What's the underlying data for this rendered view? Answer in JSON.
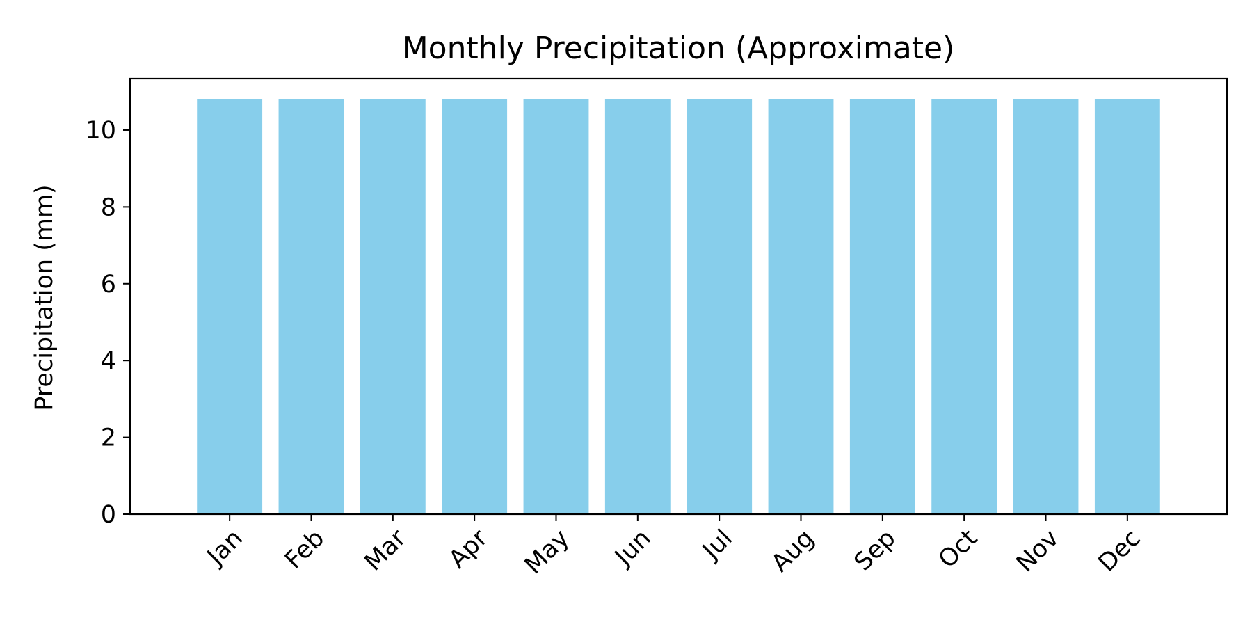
{
  "chart_data": {
    "type": "bar",
    "title": "Monthly Precipitation (Approximate)",
    "xlabel": "",
    "ylabel": "Precipitation (mm)",
    "categories": [
      "Jan",
      "Feb",
      "Mar",
      "Apr",
      "May",
      "Jun",
      "Jul",
      "Aug",
      "Sep",
      "Oct",
      "Nov",
      "Dec"
    ],
    "values": [
      10.8,
      10.8,
      10.8,
      10.8,
      10.8,
      10.8,
      10.8,
      10.8,
      10.8,
      10.8,
      10.8,
      10.8
    ],
    "yticks": [
      0,
      2,
      4,
      6,
      8,
      10
    ],
    "ylim": [
      0,
      11.34
    ],
    "bar_color": "#87ceeb",
    "grid": false,
    "legend": "none"
  }
}
